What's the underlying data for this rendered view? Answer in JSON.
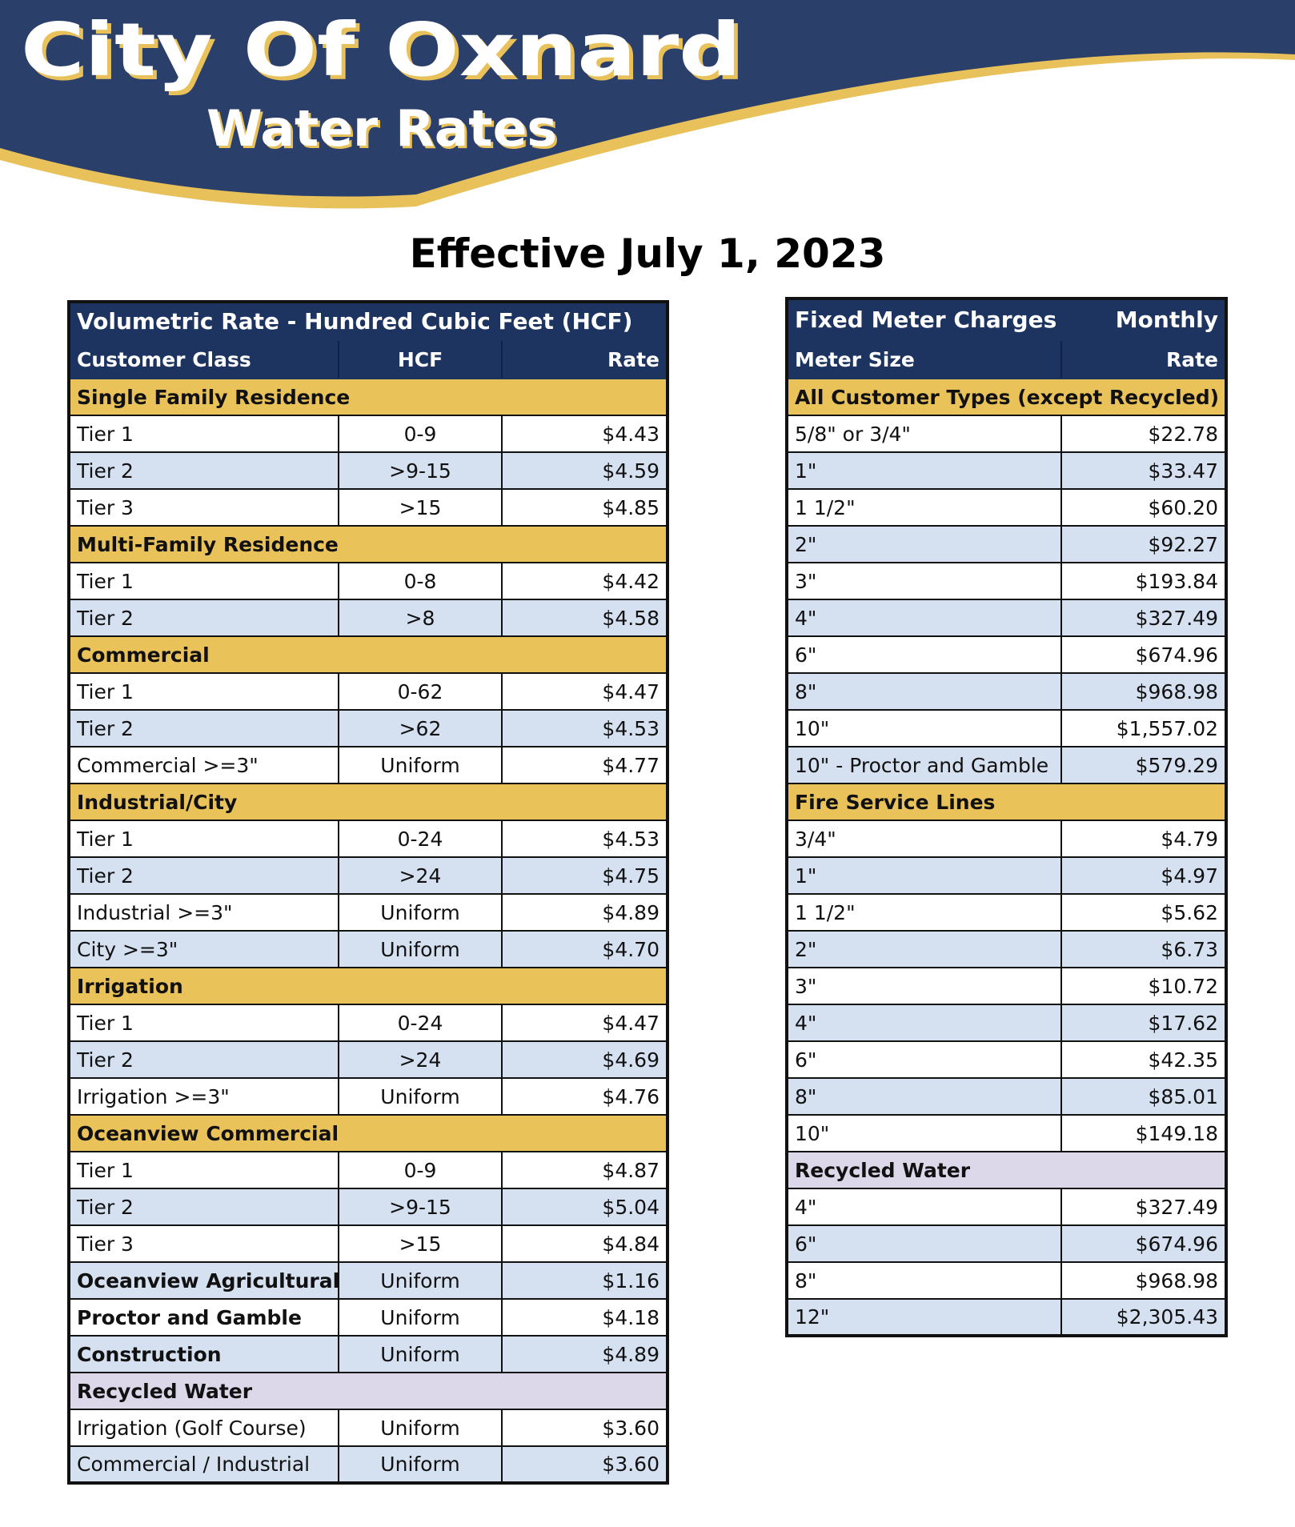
{
  "header": {
    "title": "City Of Oxnard",
    "subtitle": "Water Rates"
  },
  "effective_date": "Effective July 1, 2023",
  "left_table": {
    "title": "Volumetric Rate - Hundred Cubic Feet (HCF)",
    "columns": [
      "Customer Class",
      "HCF",
      "Rate"
    ],
    "sections": [
      {
        "name": "Single Family Residence",
        "rows": [
          [
            "Tier 1",
            "0-9",
            "$4.43"
          ],
          [
            "Tier 2",
            ">9-15",
            "$4.59"
          ],
          [
            "Tier 3",
            ">15",
            "$4.85"
          ]
        ]
      },
      {
        "name": "Multi-Family Residence",
        "rows": [
          [
            "Tier 1",
            "0-8",
            "$4.42"
          ],
          [
            "Tier 2",
            ">8",
            "$4.58"
          ]
        ]
      },
      {
        "name": "Commercial",
        "rows": [
          [
            "Tier 1",
            "0-62",
            "$4.47"
          ],
          [
            "Tier 2",
            ">62",
            "$4.53"
          ],
          [
            "Commercial >=3\"",
            "Uniform",
            "$4.77"
          ]
        ]
      },
      {
        "name": "Industrial/City",
        "rows": [
          [
            "Tier 1",
            "0-24",
            "$4.53"
          ],
          [
            "Tier 2",
            ">24",
            "$4.75"
          ],
          [
            "Industrial >=3\"",
            "Uniform",
            "$4.89"
          ],
          [
            "City >=3\"",
            "Uniform",
            "$4.70"
          ]
        ]
      },
      {
        "name": "Irrigation",
        "rows": [
          [
            "Tier 1",
            "0-24",
            "$4.47"
          ],
          [
            "Tier 2",
            ">24",
            "$4.69"
          ],
          [
            "Irrigation >=3\"",
            "Uniform",
            "$4.76"
          ]
        ]
      },
      {
        "name": "Oceanview Commercial",
        "rows": [
          [
            "Tier 1",
            "0-9",
            "$4.87"
          ],
          [
            "Tier 2",
            ">9-15",
            "$5.04"
          ],
          [
            "Tier 3",
            ">15",
            "$4.84"
          ]
        ]
      },
      {
        "label": "Oceanview Agricultural",
        "hcf": "Uniform",
        "rate": "$1.16"
      },
      {
        "label": "Proctor and Gamble",
        "hcf": "Uniform",
        "rate": "$4.18"
      },
      {
        "label": "Construction",
        "hcf": "Uniform",
        "rate": "$4.89"
      },
      {
        "name": "Recycled Water",
        "recycled": true,
        "rows": [
          [
            "Irrigation (Golf Course)",
            "Uniform",
            "$3.60"
          ],
          [
            "Commercial / Industrial",
            "Uniform",
            "$3.60"
          ]
        ]
      }
    ]
  },
  "right_table": {
    "title": "Fixed Meter Charges",
    "title_right": "Monthly",
    "columns": [
      "Meter Size",
      "Rate"
    ],
    "sections": [
      {
        "name": "All Customer Types (except Recycled)",
        "rows": [
          [
            "5/8\" or 3/4\"",
            "$22.78"
          ],
          [
            "1\"",
            "$33.47"
          ],
          [
            "1 1/2\"",
            "$60.20"
          ],
          [
            "2\"",
            "$92.27"
          ],
          [
            "3\"",
            "$193.84"
          ],
          [
            "4\"",
            "$327.49"
          ],
          [
            "6\"",
            "$674.96"
          ],
          [
            "8\"",
            "$968.98"
          ],
          [
            "10\"",
            "$1,557.02"
          ],
          [
            "10\" - Proctor and Gamble",
            "$579.29"
          ]
        ]
      },
      {
        "name": "Fire Service Lines",
        "rows": [
          [
            "3/4\"",
            "$4.79"
          ],
          [
            "1\"",
            "$4.97"
          ],
          [
            "1 1/2\"",
            "$5.62"
          ],
          [
            "2\"",
            "$6.73"
          ],
          [
            "3\"",
            "$10.72"
          ],
          [
            "4\"",
            "$17.62"
          ],
          [
            "6\"",
            "$42.35"
          ],
          [
            "8\"",
            "$85.01"
          ],
          [
            "10\"",
            "$149.18"
          ]
        ]
      },
      {
        "name": "Recycled Water",
        "recycled": true,
        "rows": [
          [
            "4\"",
            "$327.49"
          ],
          [
            "6\"",
            "$674.96"
          ],
          [
            "8\"",
            "$968.98"
          ],
          [
            "12\"",
            "$2,305.43"
          ]
        ]
      }
    ]
  }
}
